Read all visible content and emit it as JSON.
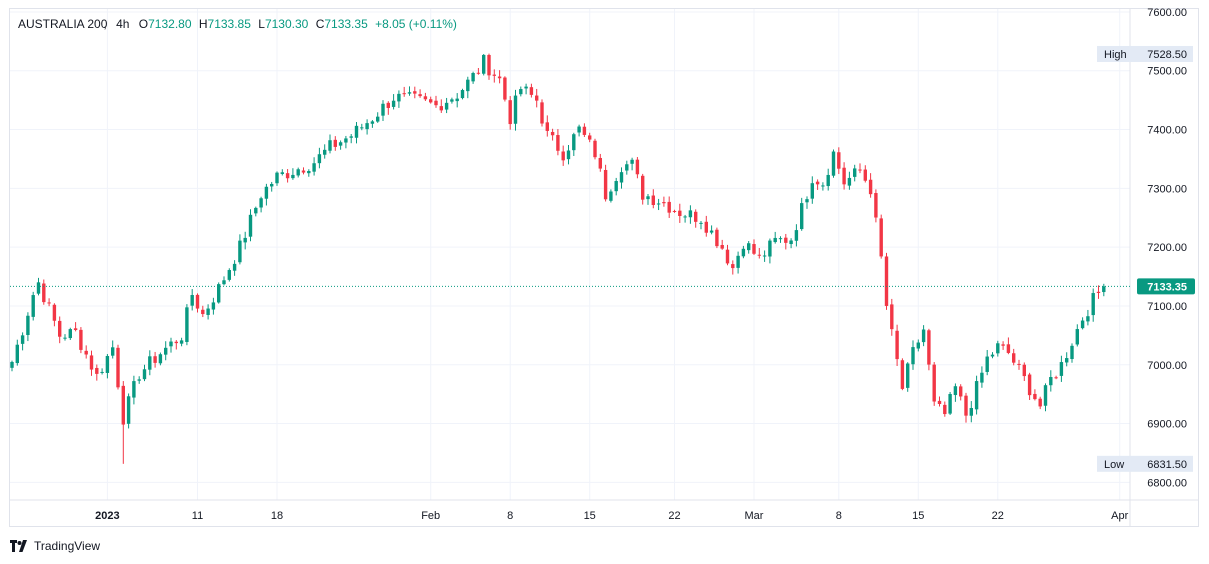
{
  "legend": {
    "symbol": "AUSTRALIA 200",
    "interval": "4h",
    "open_key": "O",
    "open": "7132.80",
    "high_key": "H",
    "high": "7133.85",
    "low_key": "L",
    "low": "7130.30",
    "close_key": "C",
    "close": "7133.35",
    "change": "+8.05 (+0.11%)"
  },
  "brand": {
    "label": "TradingView",
    "icon": "tradingview-logo-icon"
  },
  "colors": {
    "up": "#089981",
    "down": "#f23645",
    "last": "#089981",
    "grid": "#f0f3fa",
    "axis_text": "#131722"
  },
  "chart_data": {
    "type": "candlestick",
    "title": "AUSTRALIA 200, 4h",
    "ylim": [
      6770,
      7605
    ],
    "y_ticks": [
      "7600.00",
      "7500.00",
      "7400.00",
      "7300.00",
      "7200.00",
      "7100.00",
      "7000.00",
      "6900.00",
      "6800.00"
    ],
    "x_ticks": [
      "2023",
      "11",
      "18",
      "Feb",
      "8",
      "15",
      "22",
      "Mar",
      "8",
      "15",
      "22",
      "Apr"
    ],
    "x_tick_bold": [
      "2023"
    ],
    "grid": true,
    "high_marker": {
      "label": "High",
      "value": "7528.50"
    },
    "low_marker": {
      "label": "Low",
      "value": "6831.50"
    },
    "last_price": {
      "value": "7133.35"
    },
    "series": [
      {
        "name": "AUSTRALIA 200",
        "anchors": [
          [
            0,
            7005
          ],
          [
            2,
            7060
          ],
          [
            4,
            7120
          ],
          [
            5,
            7140
          ],
          [
            9,
            7050
          ],
          [
            12,
            7055
          ],
          [
            16,
            6980
          ],
          [
            19,
            7030
          ],
          [
            21,
            6910
          ],
          [
            24,
            6985
          ],
          [
            28,
            7020
          ],
          [
            32,
            7050
          ],
          [
            34,
            7120
          ],
          [
            36,
            7085
          ],
          [
            39,
            7130
          ],
          [
            43,
            7200
          ],
          [
            47,
            7290
          ],
          [
            50,
            7320
          ],
          [
            53,
            7330
          ],
          [
            57,
            7345
          ],
          [
            60,
            7370
          ],
          [
            64,
            7390
          ],
          [
            68,
            7420
          ],
          [
            72,
            7455
          ],
          [
            76,
            7450
          ],
          [
            80,
            7440
          ],
          [
            84,
            7460
          ],
          [
            87,
            7490
          ],
          [
            89,
            7515
          ],
          [
            92,
            7485
          ],
          [
            94,
            7420
          ],
          [
            96,
            7470
          ],
          [
            99,
            7450
          ],
          [
            101,
            7390
          ],
          [
            104,
            7360
          ],
          [
            107,
            7400
          ],
          [
            110,
            7360
          ],
          [
            112,
            7290
          ],
          [
            115,
            7340
          ],
          [
            117,
            7340
          ],
          [
            119,
            7290
          ],
          [
            122,
            7280
          ],
          [
            126,
            7260
          ],
          [
            130,
            7250
          ],
          [
            134,
            7200
          ],
          [
            136,
            7165
          ],
          [
            138,
            7210
          ],
          [
            141,
            7180
          ],
          [
            144,
            7210
          ],
          [
            147,
            7215
          ],
          [
            149,
            7265
          ],
          [
            151,
            7320
          ],
          [
            153,
            7310
          ],
          [
            155,
            7360
          ],
          [
            157,
            7310
          ],
          [
            160,
            7330
          ],
          [
            162,
            7300
          ],
          [
            164,
            7180
          ],
          [
            165,
            7100
          ],
          [
            166,
            7050
          ],
          [
            168,
            6960
          ],
          [
            170,
            7020
          ],
          [
            172,
            7060
          ],
          [
            174,
            6930
          ],
          [
            176,
            6915
          ],
          [
            178,
            6960
          ],
          [
            180,
            6915
          ],
          [
            182,
            6960
          ],
          [
            184,
            7010
          ],
          [
            186,
            7030
          ],
          [
            188,
            7020
          ],
          [
            190,
            6990
          ],
          [
            192,
            6960
          ],
          [
            194,
            6930
          ],
          [
            196,
            6975
          ],
          [
            198,
            7000
          ],
          [
            200,
            7040
          ],
          [
            202,
            7080
          ],
          [
            204,
            7110
          ],
          [
            206,
            7133.35
          ]
        ],
        "high": 7528.5,
        "low": 6831.5,
        "last": 7133.35
      }
    ]
  }
}
